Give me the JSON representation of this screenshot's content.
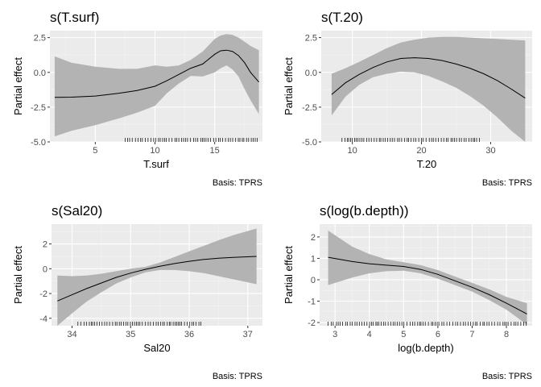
{
  "colors": {
    "panel_background": "#ebebeb",
    "grid_major": "#ffffff",
    "grid_minor": "#f4f4f4",
    "ribbon": "#b3b3b3",
    "line": "#000000",
    "rug": "#000000",
    "tick_text": "#4d4d4d"
  },
  "chart_data": [
    {
      "type": "area",
      "title": "s(T.surf)",
      "xlabel": "T.surf",
      "ylabel": "Partial effect",
      "caption": "Basis: TPRS",
      "xlim": [
        1.2,
        19.0
      ],
      "ylim": [
        -5.0,
        3.0
      ],
      "xticks": [
        5,
        10,
        15
      ],
      "yticks": [
        -5.0,
        -2.5,
        0.0,
        2.5
      ],
      "ytick_labels": [
        "-5.0",
        "-2.5",
        "0.0",
        "2.5"
      ],
      "grid": true,
      "rug_range": [
        7.5,
        18.7
      ],
      "x": [
        1.6,
        3.0,
        5.0,
        7.0,
        8.5,
        10.0,
        11.0,
        12.0,
        13.0,
        14.0,
        15.0,
        15.5,
        16.0,
        16.5,
        17.0,
        17.5,
        18.0,
        18.7
      ],
      "fit": [
        -1.8,
        -1.78,
        -1.7,
        -1.5,
        -1.3,
        -1.0,
        -0.6,
        -0.15,
        0.3,
        0.6,
        1.3,
        1.55,
        1.6,
        1.5,
        1.2,
        0.7,
        0.0,
        -0.7
      ],
      "upper": [
        1.15,
        0.7,
        0.4,
        0.25,
        0.25,
        0.5,
        0.4,
        0.5,
        0.9,
        1.5,
        2.4,
        2.65,
        2.75,
        2.7,
        2.5,
        2.2,
        1.9,
        1.6
      ],
      "lower": [
        -4.6,
        -4.2,
        -3.8,
        -3.3,
        -2.9,
        -2.4,
        -1.5,
        -0.8,
        -0.25,
        -0.3,
        0.0,
        0.3,
        0.5,
        0.2,
        -0.3,
        -1.2,
        -2.0,
        -3.0
      ]
    },
    {
      "type": "area",
      "title": "s(T.20)",
      "xlabel": "T.20",
      "ylabel": "Partial effect",
      "caption": "Basis: TPRS",
      "xlim": [
        5.5,
        36.0
      ],
      "ylim": [
        -5.0,
        3.0
      ],
      "xticks": [
        10,
        20,
        30
      ],
      "yticks": [
        -5.0,
        -2.5,
        0.0,
        2.5
      ],
      "ytick_labels": [
        "-5.0",
        "-2.5",
        "0.0",
        "2.5"
      ],
      "grid": true,
      "rug_range": [
        8.5,
        28.5
      ],
      "x": [
        7.0,
        9.0,
        11.0,
        13.0,
        15.0,
        17.0,
        19.0,
        21.0,
        23.0,
        25.0,
        27.0,
        29.0,
        31.0,
        33.0,
        35.0
      ],
      "fit": [
        -1.6,
        -0.75,
        -0.15,
        0.35,
        0.75,
        1.0,
        1.05,
        1.0,
        0.85,
        0.6,
        0.3,
        -0.1,
        -0.6,
        -1.2,
        -1.85
      ],
      "upper": [
        -0.1,
        0.3,
        0.75,
        1.25,
        1.75,
        2.15,
        2.35,
        2.5,
        2.55,
        2.55,
        2.5,
        2.45,
        2.4,
        2.35,
        2.3
      ],
      "lower": [
        -3.1,
        -1.75,
        -0.9,
        -0.35,
        -0.1,
        0.05,
        0.0,
        -0.25,
        -0.65,
        -1.1,
        -1.7,
        -2.4,
        -3.25,
        -4.2,
        -5.0
      ]
    },
    {
      "type": "area",
      "title": "s(Sal20)",
      "xlabel": "Sal20",
      "ylabel": "Partial effect",
      "caption": "Basis: TPRS",
      "xlim": [
        33.65,
        37.25
      ],
      "ylim": [
        -4.6,
        3.6
      ],
      "xticks": [
        34,
        35,
        36,
        37
      ],
      "yticks": [
        -4,
        -2,
        0,
        2
      ],
      "ytick_labels": [
        "-4",
        "-2",
        "0",
        "2"
      ],
      "grid": true,
      "rug_range": [
        34.1,
        36.2
      ],
      "x": [
        33.75,
        34.0,
        34.25,
        34.5,
        34.75,
        35.0,
        35.25,
        35.5,
        35.75,
        36.0,
        36.25,
        36.5,
        36.75,
        37.15
      ],
      "fit": [
        -2.6,
        -2.1,
        -1.6,
        -1.15,
        -0.7,
        -0.35,
        -0.05,
        0.2,
        0.42,
        0.6,
        0.75,
        0.85,
        0.92,
        1.0
      ],
      "upper": [
        -0.55,
        -0.6,
        -0.55,
        -0.4,
        -0.2,
        0.0,
        0.15,
        0.5,
        0.95,
        1.4,
        1.85,
        2.3,
        2.7,
        3.25
      ],
      "lower": [
        -4.65,
        -3.6,
        -2.65,
        -1.9,
        -1.2,
        -0.7,
        -0.3,
        -0.1,
        -0.1,
        -0.2,
        -0.35,
        -0.6,
        -0.85,
        -1.25
      ]
    },
    {
      "type": "area",
      "title": "s(log(b.depth))",
      "xlabel": "log(b.depth)",
      "ylabel": "Partial effect",
      "caption": "Basis: TPRS",
      "xlim": [
        2.55,
        8.75
      ],
      "ylim": [
        -2.15,
        2.6
      ],
      "xticks": [
        3,
        4,
        5,
        6,
        7,
        8
      ],
      "yticks": [
        -2,
        -1,
        0,
        1,
        2
      ],
      "ytick_labels": [
        "-2",
        "-1",
        "0",
        "1",
        "2"
      ],
      "grid": true,
      "rug_range": [
        2.8,
        8.6
      ],
      "x": [
        2.8,
        3.5,
        4.0,
        4.5,
        5.0,
        5.5,
        6.0,
        6.5,
        7.0,
        7.5,
        8.0,
        8.6
      ],
      "fit": [
        1.05,
        0.85,
        0.75,
        0.68,
        0.62,
        0.48,
        0.25,
        -0.05,
        -0.35,
        -0.7,
        -1.1,
        -1.6
      ],
      "upper": [
        2.3,
        1.55,
        1.2,
        0.95,
        0.82,
        0.68,
        0.45,
        0.15,
        -0.15,
        -0.45,
        -0.8,
        -1.1
      ],
      "lower": [
        -0.25,
        0.1,
        0.3,
        0.4,
        0.42,
        0.3,
        0.05,
        -0.25,
        -0.55,
        -0.95,
        -1.4,
        -2.1
      ]
    }
  ]
}
